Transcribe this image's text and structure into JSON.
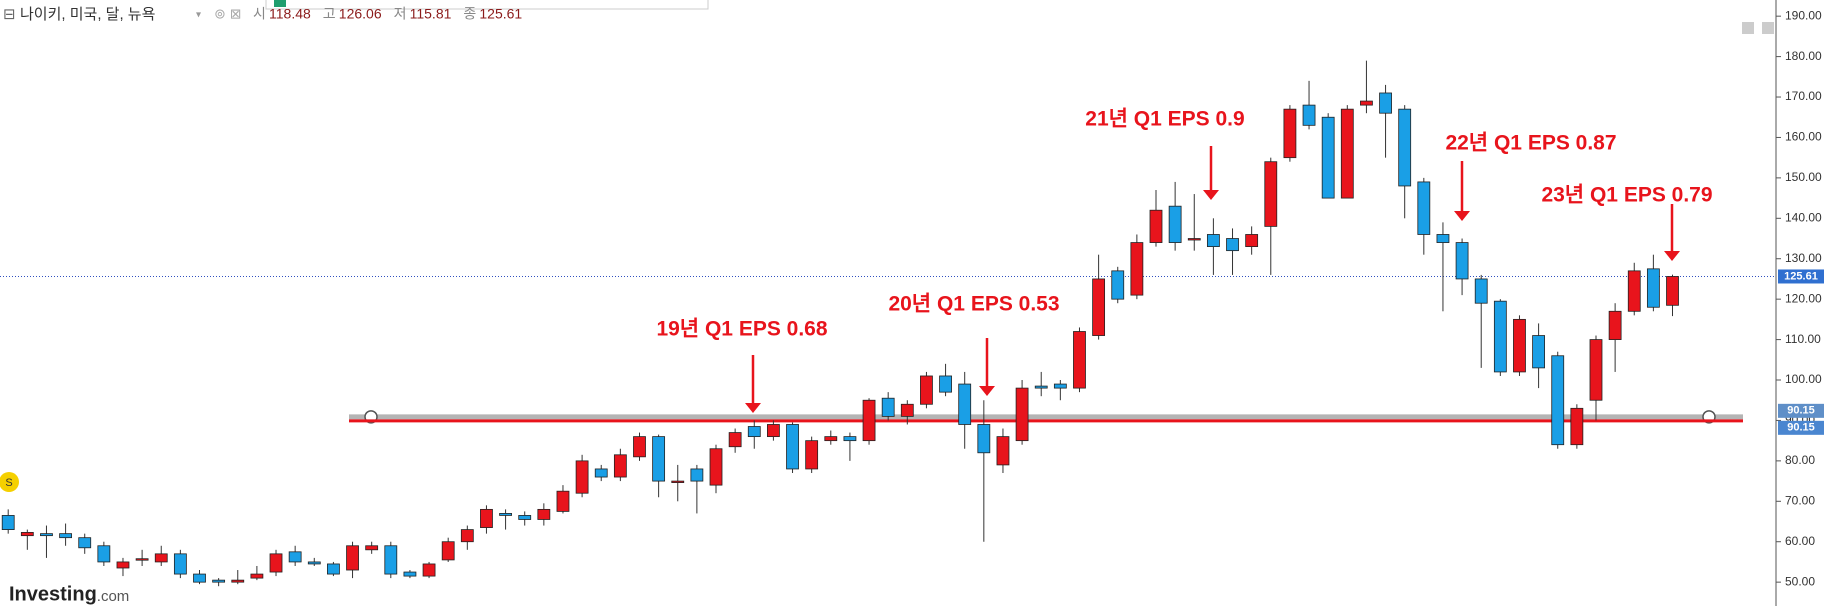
{
  "chart_data": {
    "type": "candlestick",
    "title": "나이키, 미국, 달, 뉴욕",
    "header": [
      {
        "label": "시",
        "value": 118.48
      },
      {
        "label": "고",
        "value": 126.06
      },
      {
        "label": "저",
        "value": 115.81
      },
      {
        "label": "종",
        "value": 125.61
      }
    ],
    "open": [
      66.5,
      61.5,
      62,
      62,
      61,
      59,
      53.5,
      55.5,
      55,
      57,
      52,
      50.5,
      50,
      51,
      52.5,
      57.5,
      55,
      54.5,
      53,
      58,
      59,
      52.5,
      51.5,
      55.5,
      60,
      63.5,
      67,
      66.5,
      65.5,
      67.5,
      72,
      78,
      76,
      81,
      86,
      75,
      78,
      74,
      83.5,
      88.5,
      86,
      89,
      78,
      85,
      86,
      85,
      95.5,
      91,
      94,
      101,
      99,
      89,
      79,
      85,
      98.5,
      99,
      98,
      111,
      127,
      121,
      134,
      143,
      135,
      136,
      135,
      133,
      138,
      155,
      168,
      165,
      145,
      168,
      171,
      167,
      149,
      136,
      134,
      125,
      119.5,
      102,
      111,
      106,
      84,
      95,
      110,
      117,
      127.5,
      118.48
    ],
    "high": [
      68,
      63,
      64,
      64.5,
      62,
      60,
      56,
      58,
      59,
      58,
      53,
      51,
      53,
      54,
      58,
      59,
      56,
      55,
      60,
      60,
      60,
      53,
      55,
      61,
      64,
      69,
      68,
      67.5,
      69.5,
      74,
      81.5,
      79,
      83,
      87,
      86.5,
      79,
      79,
      84,
      88,
      90,
      90,
      89.5,
      86,
      87.5,
      87,
      95.5,
      97,
      95,
      102,
      104,
      102,
      95,
      88,
      100,
      102,
      100,
      113,
      131,
      128,
      136,
      147,
      149,
      146,
      140,
      137.5,
      138,
      155,
      168,
      174,
      166,
      168,
      179,
      173,
      168,
      150,
      139,
      135,
      126,
      120,
      116,
      114,
      107,
      94,
      111,
      119,
      129,
      131,
      126.06
    ],
    "low": [
      62,
      58,
      56,
      59,
      57,
      54,
      51.5,
      54,
      54,
      51,
      49.5,
      49,
      49.5,
      50.5,
      51.5,
      54,
      54,
      51.5,
      51,
      57,
      51,
      51,
      51,
      55,
      58,
      62,
      63,
      64,
      64,
      67,
      71,
      75,
      75,
      80,
      71,
      70,
      67,
      72,
      82,
      83,
      85,
      77,
      77,
      84,
      80,
      84,
      90,
      89,
      93,
      96,
      83,
      60,
      77,
      84,
      96,
      95,
      97,
      110,
      119,
      120,
      133,
      132,
      132,
      126,
      126,
      131,
      126,
      154,
      162,
      145,
      145,
      166,
      155,
      140,
      131,
      117,
      121,
      103,
      101,
      101,
      98,
      83,
      83,
      90,
      102,
      116,
      117,
      115.81
    ],
    "close": [
      63,
      62.3,
      61.5,
      61,
      58.5,
      55,
      55,
      55.8,
      57,
      52,
      50,
      50,
      50.5,
      52,
      57,
      55,
      54.5,
      52,
      59,
      59,
      52,
      51.5,
      54.5,
      60,
      63,
      68,
      66.5,
      65.5,
      68,
      72.5,
      80,
      76,
      81.5,
      86,
      75,
      75,
      75,
      83,
      87,
      86,
      89,
      78,
      85,
      86,
      85,
      95,
      91,
      94,
      101,
      97,
      89,
      82,
      86,
      98,
      98,
      98,
      112,
      125,
      120,
      134,
      142,
      134,
      135,
      133,
      132,
      136,
      154,
      167,
      163,
      145,
      167,
      169,
      166,
      148,
      136,
      134,
      125,
      119,
      102,
      115,
      103,
      84,
      93,
      110,
      117,
      127,
      118,
      125.61
    ],
    "up_color": "#e8141c",
    "down_color": "#1a9fe6",
    "levels": [
      {
        "value": 90.15,
        "color": "#b4b4b4"
      },
      {
        "value": 90.15,
        "color": "#e8141c"
      }
    ],
    "annotations": [
      "19년 Q1 EPS 0.68",
      "20년 Q1 EPS 0.53",
      "21년 Q1 EPS 0.9",
      "22년 Q1 EPS 0.87",
      "23년 Q1 EPS 0.79"
    ],
    "ylim": [
      44.1,
      194
    ],
    "yticks": [
      {
        "value": 50,
        "label": "50.00"
      },
      {
        "value": 60,
        "label": "60.00"
      },
      {
        "value": 70,
        "label": "70.00"
      },
      {
        "value": 80,
        "label": "80.00"
      },
      {
        "value": 90,
        "label": "90.00"
      },
      {
        "value": 100,
        "label": "100.00"
      },
      {
        "value": 110,
        "label": "110.00"
      },
      {
        "value": 120,
        "label": "120.00"
      },
      {
        "value": 130,
        "label": "130.00"
      },
      {
        "value": 140,
        "label": "140.00"
      },
      {
        "value": 150,
        "label": "150.00"
      },
      {
        "value": 160,
        "label": "160.00"
      },
      {
        "value": 170,
        "label": "170.00"
      },
      {
        "value": 180,
        "label": "180.00"
      },
      {
        "value": 190,
        "label": "190.00"
      }
    ],
    "badge": "S",
    "logo": [
      "Investing",
      ".com"
    ]
  }
}
